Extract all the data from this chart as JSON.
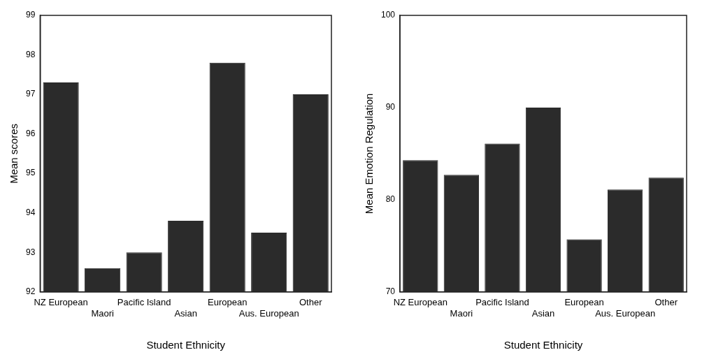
{
  "chart_data": [
    {
      "type": "bar",
      "categories": [
        "NZ European",
        "Maori",
        "Pacific Island",
        "Asian",
        "European",
        "Aus. European",
        "Other"
      ],
      "values": [
        97.3,
        92.6,
        93.0,
        93.8,
        97.8,
        93.5,
        97.0
      ],
      "color": "#2b2b2b",
      "ylim": [
        92,
        99
      ],
      "yticks": [
        92,
        93,
        94,
        95,
        96,
        97,
        98,
        99
      ],
      "xlabel": "Student Ethnicity",
      "ylabel": "Mean scores",
      "grid": false,
      "legend": false
    },
    {
      "type": "bar",
      "categories": [
        "NZ European",
        "Maori",
        "Pacific Island",
        "Asian",
        "European",
        "Aus. European",
        "Other"
      ],
      "values": [
        84.3,
        82.7,
        86.1,
        90.0,
        75.7,
        81.1,
        82.4
      ],
      "color": "#2b2b2b",
      "ylim": [
        70,
        100
      ],
      "yticks": [
        70,
        80,
        90,
        100
      ],
      "xlabel": "Student Ethnicity",
      "ylabel": "Mean Emotion Regulation",
      "grid": false,
      "legend": false
    }
  ]
}
